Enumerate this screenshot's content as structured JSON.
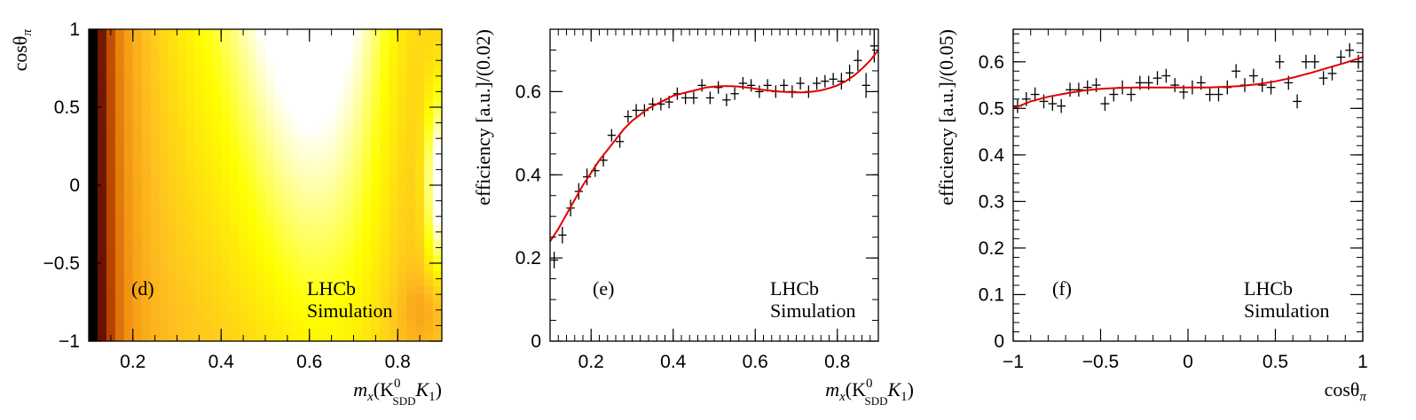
{
  "chart_data": [
    {
      "type": "heatmap",
      "panel_label": "(d)",
      "annotation": [
        "LHCb",
        "Simulation"
      ],
      "xlabel": {
        "main": "m",
        "sub": "x",
        "open": "(K",
        "sup": "0",
        "sub2": "SDD",
        "mid": "K",
        "sub3": "1",
        "close": ")"
      },
      "ylabel": {
        "main": "cosθ",
        "sub": "π"
      },
      "xlim": [
        0.1,
        0.9
      ],
      "ylim": [
        -1,
        1
      ],
      "xticks": [
        0.2,
        0.4,
        0.6,
        0.8
      ],
      "xtick_labels": [
        "0.2",
        "0.4",
        "0.6",
        "0.8"
      ],
      "yticks": [
        -1,
        -0.5,
        0,
        0.5,
        1
      ],
      "ytick_labels": [
        "−1",
        "−0.5",
        "0",
        "0.5",
        "1"
      ],
      "x_bins": 40,
      "y_bins": 40,
      "colormap": [
        "#000000",
        "#5a0c00",
        "#b53f00",
        "#f08c10",
        "#ffc020",
        "#ffff00",
        "#ffffff"
      ]
    },
    {
      "type": "scatter",
      "panel_label": "(e)",
      "annotation": [
        "LHCb",
        "Simulation"
      ],
      "xlabel": {
        "main": "m",
        "sub": "x",
        "open": "(K",
        "sup": "0",
        "sub2": "SDD",
        "mid": "K",
        "sub3": "1",
        "close": ")"
      },
      "ylabel": "efficiency [a.u.]/(0.02)",
      "xlim": [
        0.1,
        0.9
      ],
      "ylim": [
        0,
        0.75
      ],
      "xticks": [
        0.2,
        0.4,
        0.6,
        0.8
      ],
      "xtick_labels": [
        "0.2",
        "0.4",
        "0.6",
        "0.8"
      ],
      "yticks": [
        0,
        0.2,
        0.4,
        0.6
      ],
      "ytick_labels": [
        "0",
        "0.2",
        "0.4",
        "0.6"
      ],
      "x_err": 0.01,
      "x": [
        0.11,
        0.13,
        0.15,
        0.17,
        0.19,
        0.21,
        0.23,
        0.25,
        0.27,
        0.29,
        0.31,
        0.33,
        0.35,
        0.37,
        0.39,
        0.41,
        0.43,
        0.45,
        0.47,
        0.49,
        0.51,
        0.53,
        0.55,
        0.57,
        0.59,
        0.61,
        0.63,
        0.65,
        0.67,
        0.69,
        0.71,
        0.73,
        0.75,
        0.77,
        0.79,
        0.81,
        0.83,
        0.85,
        0.87,
        0.89
      ],
      "y": [
        0.195,
        0.255,
        0.32,
        0.36,
        0.395,
        0.41,
        0.435,
        0.495,
        0.48,
        0.54,
        0.555,
        0.555,
        0.57,
        0.57,
        0.575,
        0.595,
        0.585,
        0.585,
        0.615,
        0.585,
        0.61,
        0.58,
        0.595,
        0.62,
        0.615,
        0.6,
        0.615,
        0.6,
        0.615,
        0.6,
        0.62,
        0.6,
        0.62,
        0.625,
        0.63,
        0.625,
        0.645,
        0.675,
        0.615,
        0.71
      ],
      "y_err": [
        0.02,
        0.02,
        0.02,
        0.02,
        0.02,
        0.015,
        0.015,
        0.015,
        0.015,
        0.015,
        0.015,
        0.015,
        0.015,
        0.015,
        0.015,
        0.015,
        0.015,
        0.015,
        0.015,
        0.015,
        0.015,
        0.015,
        0.015,
        0.015,
        0.015,
        0.015,
        0.015,
        0.015,
        0.015,
        0.015,
        0.015,
        0.015,
        0.015,
        0.015,
        0.015,
        0.02,
        0.02,
        0.025,
        0.03,
        0.04
      ],
      "fit_line": {
        "color": "#e00000",
        "x": [
          0.1,
          0.12,
          0.14,
          0.16,
          0.18,
          0.2,
          0.22,
          0.24,
          0.26,
          0.28,
          0.3,
          0.32,
          0.34,
          0.36,
          0.38,
          0.4,
          0.42,
          0.44,
          0.46,
          0.48,
          0.5,
          0.52,
          0.54,
          0.56,
          0.58,
          0.6,
          0.62,
          0.64,
          0.66,
          0.68,
          0.7,
          0.72,
          0.74,
          0.76,
          0.78,
          0.8,
          0.82,
          0.84,
          0.86,
          0.88,
          0.9
        ],
        "y": [
          0.24,
          0.27,
          0.305,
          0.34,
          0.375,
          0.405,
          0.435,
          0.46,
          0.485,
          0.51,
          0.53,
          0.545,
          0.56,
          0.57,
          0.58,
          0.59,
          0.595,
          0.6,
          0.605,
          0.61,
          0.612,
          0.613,
          0.613,
          0.612,
          0.61,
          0.607,
          0.604,
          0.602,
          0.6,
          0.599,
          0.598,
          0.598,
          0.6,
          0.603,
          0.608,
          0.615,
          0.625,
          0.638,
          0.655,
          0.675,
          0.7
        ]
      }
    },
    {
      "type": "scatter",
      "panel_label": "(f)",
      "annotation": [
        "LHCb",
        "Simulation"
      ],
      "xlabel": {
        "main": "cosθ",
        "sub": "π"
      },
      "ylabel": "efficiency [a.u.]/(0.05)",
      "xlim": [
        -1,
        1
      ],
      "ylim": [
        0,
        0.67
      ],
      "xticks": [
        -1,
        -0.5,
        0,
        0.5,
        1
      ],
      "xtick_labels": [
        "−1",
        "−0.5",
        "0",
        "0.5",
        "1"
      ],
      "yticks": [
        0,
        0.1,
        0.2,
        0.3,
        0.4,
        0.5,
        0.6
      ],
      "ytick_labels": [
        "0",
        "0.1",
        "0.2",
        "0.3",
        "0.4",
        "0.5",
        "0.6"
      ],
      "x_err": 0.025,
      "x": [
        -0.975,
        -0.925,
        -0.875,
        -0.825,
        -0.775,
        -0.725,
        -0.675,
        -0.625,
        -0.575,
        -0.525,
        -0.475,
        -0.425,
        -0.375,
        -0.325,
        -0.275,
        -0.225,
        -0.175,
        -0.125,
        -0.075,
        -0.025,
        0.025,
        0.075,
        0.125,
        0.175,
        0.225,
        0.275,
        0.325,
        0.375,
        0.425,
        0.475,
        0.525,
        0.575,
        0.625,
        0.675,
        0.725,
        0.775,
        0.825,
        0.875,
        0.925,
        0.975
      ],
      "y": [
        0.505,
        0.52,
        0.53,
        0.515,
        0.51,
        0.505,
        0.54,
        0.54,
        0.545,
        0.55,
        0.51,
        0.53,
        0.545,
        0.53,
        0.555,
        0.555,
        0.565,
        0.57,
        0.55,
        0.535,
        0.545,
        0.555,
        0.53,
        0.53,
        0.545,
        0.58,
        0.55,
        0.57,
        0.55,
        0.545,
        0.6,
        0.555,
        0.515,
        0.6,
        0.6,
        0.565,
        0.575,
        0.61,
        0.625,
        0.6
      ],
      "y_err": [
        0.015,
        0.015,
        0.015,
        0.015,
        0.015,
        0.015,
        0.015,
        0.015,
        0.015,
        0.015,
        0.015,
        0.015,
        0.015,
        0.015,
        0.015,
        0.015,
        0.015,
        0.015,
        0.015,
        0.015,
        0.015,
        0.015,
        0.015,
        0.015,
        0.015,
        0.015,
        0.015,
        0.015,
        0.015,
        0.015,
        0.015,
        0.015,
        0.015,
        0.015,
        0.015,
        0.015,
        0.015,
        0.015,
        0.015,
        0.015
      ],
      "fit_line": {
        "color": "#e00000",
        "x": [
          -1,
          -0.9,
          -0.8,
          -0.7,
          -0.6,
          -0.5,
          -0.4,
          -0.3,
          -0.2,
          -0.1,
          0,
          0.1,
          0.2,
          0.3,
          0.4,
          0.5,
          0.6,
          0.7,
          0.8,
          0.9,
          1
        ],
        "y": [
          0.5,
          0.515,
          0.525,
          0.532,
          0.538,
          0.542,
          0.544,
          0.545,
          0.545,
          0.545,
          0.545,
          0.545,
          0.546,
          0.548,
          0.552,
          0.558,
          0.566,
          0.576,
          0.587,
          0.598,
          0.61
        ]
      }
    }
  ]
}
